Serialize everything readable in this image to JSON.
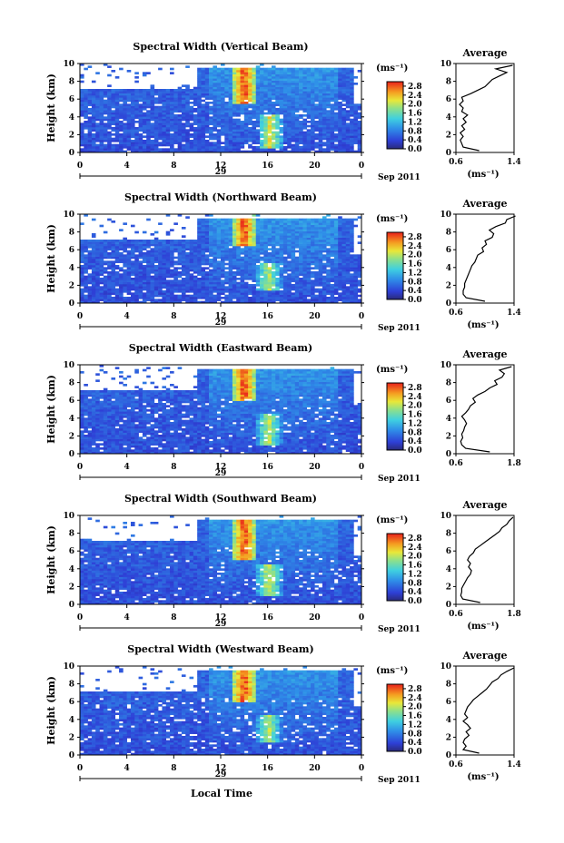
{
  "figure": {
    "common_xlabel": "Local Time",
    "date_suffix": "Sep 2011",
    "day": "29",
    "ylabel": "Height (km)",
    "colorbar_unit": "(ms⁻¹)",
    "profile_title": "Average",
    "profile_xlabel": "(ms⁻¹)"
  },
  "chart_data": [
    {
      "type": "heatmap",
      "title": "Spectral Width (Vertical Beam)",
      "xlabel": "Local Time",
      "ylabel": "Height (km)",
      "xlim": [
        0,
        24
      ],
      "xticks": [
        "0",
        "4",
        "8",
        "12",
        "16",
        "20",
        "0"
      ],
      "ylim": [
        0,
        10
      ],
      "yticks": [
        "0",
        "2",
        "4",
        "6",
        "8",
        "10"
      ],
      "colorbar": {
        "unit": "(ms⁻¹)",
        "range": [
          0,
          3
        ],
        "ticks": [
          "0.0",
          "0.4",
          "0.8",
          "1.2",
          "1.6",
          "2.0",
          "2.4",
          "2.8"
        ]
      },
      "high_width_regions": [
        {
          "time_start": 13,
          "time_end": 15,
          "height_start": 5.5,
          "height_end": 10,
          "value": 2.9
        },
        {
          "time_start": 15.2,
          "time_end": 17.2,
          "height_start": 0.5,
          "height_end": 4.3,
          "value": 2.2
        }
      ],
      "profile": {
        "title": "Average",
        "xlabel": "(ms⁻¹)",
        "xticks": [
          "0.6",
          "1.4"
        ],
        "xlim": [
          0.6,
          1.4
        ],
        "heights": [
          0.2,
          0.6,
          1.0,
          1.4,
          1.8,
          2.2,
          2.6,
          3.0,
          3.4,
          3.8,
          4.2,
          4.6,
          5.0,
          5.4,
          5.8,
          6.2,
          6.6,
          7.0,
          7.4,
          7.8,
          8.2,
          8.6,
          9.0,
          9.4,
          9.8
        ],
        "values": [
          0.92,
          0.7,
          0.68,
          0.66,
          0.7,
          0.66,
          0.72,
          0.68,
          0.74,
          0.7,
          0.76,
          0.68,
          0.7,
          0.65,
          0.7,
          0.68,
          0.8,
          0.9,
          1.0,
          1.05,
          1.1,
          1.2,
          1.3,
          1.15,
          1.38
        ]
      }
    },
    {
      "type": "heatmap",
      "title": "Spectral Width (Northward Beam)",
      "xlabel": "Local Time",
      "ylabel": "Height (km)",
      "xlim": [
        0,
        24
      ],
      "xticks": [
        "0",
        "4",
        "8",
        "12",
        "16",
        "20",
        "0"
      ],
      "ylim": [
        0,
        10
      ],
      "yticks": [
        "0",
        "2",
        "4",
        "6",
        "8",
        "10"
      ],
      "colorbar": {
        "unit": "(ms⁻¹)",
        "range": [
          0,
          3
        ],
        "ticks": [
          "0.0",
          "0.4",
          "0.8",
          "1.2",
          "1.6",
          "2.0",
          "2.4",
          "2.8"
        ]
      },
      "high_width_regions": [
        {
          "time_start": 13,
          "time_end": 15,
          "height_start": 6.5,
          "height_end": 10,
          "value": 2.9
        },
        {
          "time_start": 15,
          "time_end": 17.2,
          "height_start": 1.5,
          "height_end": 4.5,
          "value": 2.0
        }
      ],
      "profile": {
        "title": "Average",
        "xlabel": "(ms⁻¹)",
        "xticks": [
          "0.6",
          "1.4"
        ],
        "xlim": [
          0.6,
          1.4
        ],
        "heights": [
          0.2,
          0.6,
          1.0,
          1.4,
          1.8,
          2.2,
          2.6,
          3.0,
          3.4,
          3.8,
          4.2,
          4.6,
          5.0,
          5.4,
          5.8,
          6.2,
          6.6,
          7.0,
          7.4,
          7.8,
          8.2,
          8.6,
          9.0,
          9.4,
          9.8
        ],
        "values": [
          1.0,
          0.74,
          0.7,
          0.7,
          0.72,
          0.72,
          0.74,
          0.76,
          0.78,
          0.8,
          0.82,
          0.86,
          0.88,
          0.9,
          0.98,
          0.96,
          1.02,
          1.0,
          1.1,
          1.12,
          1.06,
          1.15,
          1.28,
          1.3,
          1.42
        ]
      }
    },
    {
      "type": "heatmap",
      "title": "Spectral Width (Eastward Beam)",
      "xlabel": "Local Time",
      "ylabel": "Height (km)",
      "xlim": [
        0,
        24
      ],
      "xticks": [
        "0",
        "4",
        "8",
        "12",
        "16",
        "20",
        "0"
      ],
      "ylim": [
        0,
        10
      ],
      "yticks": [
        "0",
        "2",
        "4",
        "6",
        "8",
        "10"
      ],
      "colorbar": {
        "unit": "(ms⁻¹)",
        "range": [
          0,
          3
        ],
        "ticks": [
          "0.0",
          "0.4",
          "0.8",
          "1.2",
          "1.6",
          "2.0",
          "2.4",
          "2.8"
        ]
      },
      "high_width_regions": [
        {
          "time_start": 13,
          "time_end": 15,
          "height_start": 6,
          "height_end": 10,
          "value": 2.9
        },
        {
          "time_start": 15,
          "time_end": 17.2,
          "height_start": 1,
          "height_end": 4.5,
          "value": 2.0
        }
      ],
      "profile": {
        "title": "Average",
        "xlabel": "",
        "xticks": [
          "0.6",
          "1.8"
        ],
        "xlim": [
          0.6,
          1.8
        ],
        "heights": [
          0.2,
          0.6,
          1.0,
          1.4,
          1.8,
          2.2,
          2.6,
          3.0,
          3.4,
          3.8,
          4.2,
          4.6,
          5.0,
          5.4,
          5.8,
          6.2,
          6.6,
          7.0,
          7.4,
          7.8,
          8.2,
          8.6,
          9.0,
          9.4,
          9.8
        ],
        "values": [
          1.3,
          0.8,
          0.72,
          0.7,
          0.74,
          0.72,
          0.76,
          0.78,
          0.82,
          0.78,
          0.72,
          0.8,
          0.86,
          0.9,
          1.0,
          0.95,
          1.05,
          1.2,
          1.3,
          1.45,
          1.4,
          1.55,
          1.6,
          1.5,
          1.75
        ]
      }
    },
    {
      "type": "heatmap",
      "title": "Spectral Width (Southward Beam)",
      "xlabel": "Local Time",
      "ylabel": "Height (km)",
      "xlim": [
        0,
        24
      ],
      "xticks": [
        "0",
        "4",
        "8",
        "12",
        "16",
        "20",
        "0"
      ],
      "ylim": [
        0,
        10
      ],
      "yticks": [
        "0",
        "2",
        "4",
        "6",
        "8",
        "10"
      ],
      "colorbar": {
        "unit": "(ms⁻¹)",
        "range": [
          0,
          3
        ],
        "ticks": [
          "0.0",
          "0.4",
          "0.8",
          "1.2",
          "1.6",
          "2.0",
          "2.4",
          "2.8"
        ]
      },
      "high_width_regions": [
        {
          "time_start": 13,
          "time_end": 15,
          "height_start": 5,
          "height_end": 10,
          "value": 2.9
        },
        {
          "time_start": 15,
          "time_end": 17.2,
          "height_start": 1,
          "height_end": 4.5,
          "value": 2.1
        }
      ],
      "profile": {
        "title": "Average",
        "xlabel": "(ms⁻¹)",
        "xticks": [
          "0.6",
          "1.8"
        ],
        "xlim": [
          0.6,
          1.8
        ],
        "heights": [
          0.2,
          0.6,
          1.0,
          1.4,
          1.8,
          2.2,
          2.6,
          3.0,
          3.4,
          3.8,
          4.2,
          4.6,
          5.0,
          5.4,
          5.8,
          6.2,
          6.6,
          7.0,
          7.4,
          7.8,
          8.2,
          8.6,
          9.0,
          9.4,
          9.8
        ],
        "values": [
          1.1,
          0.74,
          0.7,
          0.72,
          0.72,
          0.76,
          0.8,
          0.84,
          0.9,
          0.92,
          0.86,
          0.9,
          0.84,
          0.88,
          0.96,
          1.0,
          1.1,
          1.2,
          1.3,
          1.4,
          1.5,
          1.55,
          1.65,
          1.7,
          1.78
        ]
      }
    },
    {
      "type": "heatmap",
      "title": "Spectral Width (Westward Beam)",
      "xlabel": "Local Time",
      "ylabel": "Height (km)",
      "xlim": [
        0,
        24
      ],
      "xticks": [
        "0",
        "4",
        "8",
        "12",
        "16",
        "20",
        "0"
      ],
      "ylim": [
        0,
        10
      ],
      "yticks": [
        "0",
        "2",
        "4",
        "6",
        "8",
        "10"
      ],
      "colorbar": {
        "unit": "(ms⁻¹)",
        "range": [
          0,
          3
        ],
        "ticks": [
          "0.0",
          "0.4",
          "0.8",
          "1.2",
          "1.6",
          "2.0",
          "2.4",
          "2.8"
        ]
      },
      "high_width_regions": [
        {
          "time_start": 13,
          "time_end": 15,
          "height_start": 6,
          "height_end": 10,
          "value": 2.9
        },
        {
          "time_start": 15,
          "time_end": 17.2,
          "height_start": 1.5,
          "height_end": 4.5,
          "value": 2.0
        }
      ],
      "profile": {
        "title": "Average",
        "xlabel": "(ms⁻¹)",
        "xticks": [
          "0.6",
          "1.4"
        ],
        "xlim": [
          0.6,
          1.4
        ],
        "heights": [
          0.2,
          0.6,
          1.0,
          1.4,
          1.8,
          2.2,
          2.6,
          3.0,
          3.4,
          3.8,
          4.2,
          4.6,
          5.0,
          5.4,
          5.8,
          6.2,
          6.6,
          7.0,
          7.4,
          7.8,
          8.2,
          8.6,
          9.0,
          9.4,
          9.8
        ],
        "values": [
          0.92,
          0.7,
          0.74,
          0.7,
          0.72,
          0.78,
          0.74,
          0.8,
          0.76,
          0.7,
          0.76,
          0.72,
          0.74,
          0.76,
          0.8,
          0.84,
          0.9,
          0.96,
          1.02,
          1.06,
          1.1,
          1.18,
          1.22,
          1.3,
          1.4
        ]
      }
    }
  ]
}
